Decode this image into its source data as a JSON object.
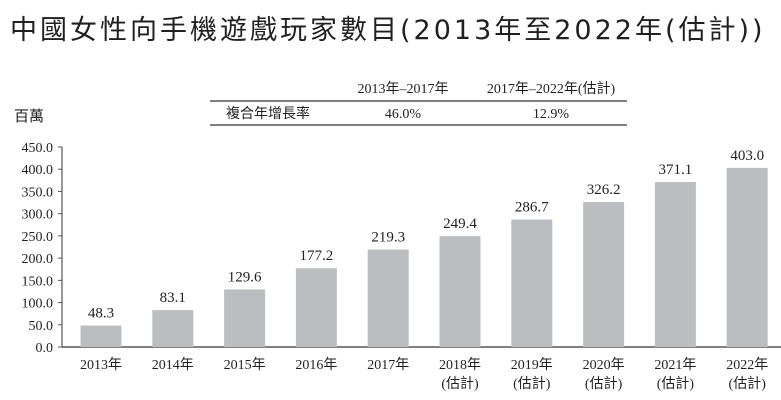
{
  "chart_data": {
    "type": "bar",
    "title": "中國女性向手機遊戲玩家數目(2013年至2022年(估計))",
    "ylabel": "百萬",
    "xlabel": "",
    "ylim": [
      0,
      450
    ],
    "yticks": [
      "0.0",
      "50.0",
      "100.0",
      "150.0",
      "200.0",
      "250.0",
      "300.0",
      "350.0",
      "400.0",
      "450.0"
    ],
    "grid": false,
    "bar_color": "#bcbdc0",
    "categories": [
      {
        "year": "2013年",
        "note": ""
      },
      {
        "year": "2014年",
        "note": ""
      },
      {
        "year": "2015年",
        "note": ""
      },
      {
        "year": "2016年",
        "note": ""
      },
      {
        "year": "2017年",
        "note": ""
      },
      {
        "year": "2018年",
        "note": "(估計)"
      },
      {
        "year": "2019年",
        "note": "(估計)"
      },
      {
        "year": "2020年",
        "note": "(估計)"
      },
      {
        "year": "2021年",
        "note": "(估計)"
      },
      {
        "year": "2022年",
        "note": "(估計)"
      }
    ],
    "values": [
      48.3,
      83.1,
      129.6,
      177.2,
      219.3,
      249.4,
      286.7,
      326.2,
      371.1,
      403.0
    ],
    "labels": [
      "48.3",
      "83.1",
      "129.6",
      "177.2",
      "219.3",
      "249.4",
      "286.7",
      "326.2",
      "371.1",
      "403.0"
    ],
    "cagr_table": {
      "headers": [
        "2013年–2017年",
        "2017年–2022年(估計)"
      ],
      "row_label": "複合年增長率",
      "values": [
        "46.0%",
        "12.9%"
      ]
    }
  }
}
